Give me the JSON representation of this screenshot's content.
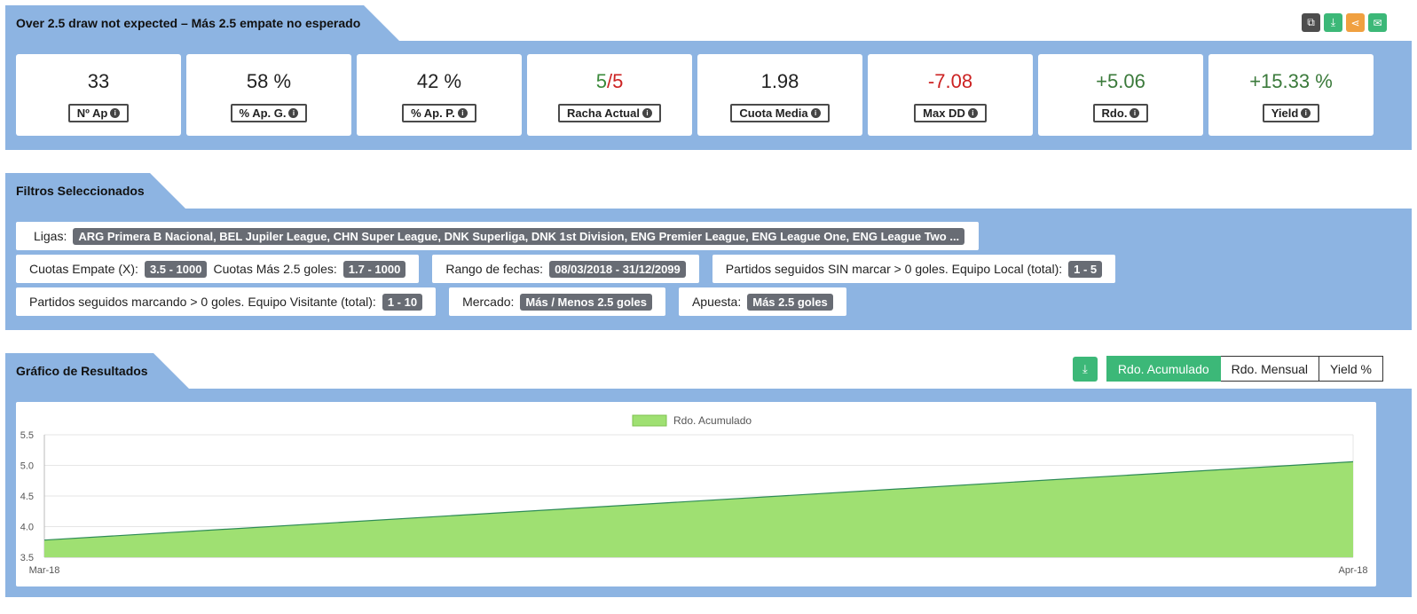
{
  "header": {
    "title": "Over 2.5 draw not expected – Más 2.5 empate no esperado",
    "icons": [
      {
        "name": "copy-icon",
        "glyph": "⧉",
        "color": "#4d4d4d"
      },
      {
        "name": "download-icon",
        "glyph": "⤓",
        "color": "#3cb878"
      },
      {
        "name": "share-icon",
        "glyph": "⋖",
        "color": "#f0a040"
      },
      {
        "name": "email-icon",
        "glyph": "✉",
        "color": "#3cb878"
      }
    ]
  },
  "stats": [
    {
      "value": "33",
      "label": "Nº Ap",
      "color": "#222222"
    },
    {
      "value": "58 %",
      "label": "% Ap. G.",
      "color": "#222222"
    },
    {
      "value": "42 %",
      "label": "% Ap. P.",
      "color": "#222222"
    },
    {
      "value_a": "5",
      "value_sep": "/",
      "value_b": "5",
      "label": "Racha Actual",
      "color_a": "#3b8a3b",
      "color_b": "#cc2222"
    },
    {
      "value": "1.98",
      "label": "Cuota Media",
      "color": "#222222"
    },
    {
      "value": "-7.08",
      "label": "Max DD",
      "color": "#cc2222"
    },
    {
      "value": "+5.06",
      "label": "Rdo.",
      "color": "#3b7a3b"
    },
    {
      "value": "+15.33 %",
      "label": "Yield",
      "color": "#3b7a3b"
    }
  ],
  "filters_title": "Filtros Seleccionados",
  "filters": {
    "ligas_label": "Ligas:",
    "ligas_value": "ARG Primera B Nacional, BEL Jupiler League, CHN Super League, DNK Superliga, DNK 1st Division, ENG Premier League, ENG League One, ENG League Two ...",
    "cuotas_empate_label": "Cuotas Empate (X):",
    "cuotas_empate_value": "3.5 - 1000",
    "cuotas_mas_label": "Cuotas Más 2.5 goles:",
    "cuotas_mas_value": "1.7 - 1000",
    "rango_label": "Rango de fechas:",
    "rango_value": "08/03/2018 - 31/12/2099",
    "sin_marcar_label": "Partidos seguidos SIN marcar > 0 goles. Equipo Local (total):",
    "sin_marcar_value": "1 - 5",
    "marcando_label": "Partidos seguidos marcando > 0 goles. Equipo Visitante (total):",
    "marcando_value": "1 - 10",
    "mercado_label": "Mercado:",
    "mercado_value": "Más / Menos 2.5 goles",
    "apuesta_label": "Apuesta:",
    "apuesta_value": "Más 2.5 goles"
  },
  "chart_section": {
    "title": "Gráfico de Resultados",
    "buttons": {
      "acumulado": "Rdo. Acumulado",
      "mensual": "Rdo. Mensual",
      "yield": "Yield %"
    },
    "colors": {
      "accent": "#3cb878",
      "fill": "#9fe072",
      "line": "#2e8b57"
    }
  },
  "chart_data": {
    "type": "area",
    "x": [
      "Mar-18",
      "Apr-18"
    ],
    "series": [
      {
        "name": "Rdo. Acumulado",
        "values": [
          3.78,
          5.06
        ]
      }
    ],
    "ylim": [
      3.5,
      5.5
    ],
    "yticks": [
      "5.5",
      "5.0",
      "4.5",
      "4.0",
      "3.5"
    ],
    "xticks": [
      "Mar-18",
      "Apr-18"
    ],
    "legend": "top-center",
    "grid": true
  }
}
